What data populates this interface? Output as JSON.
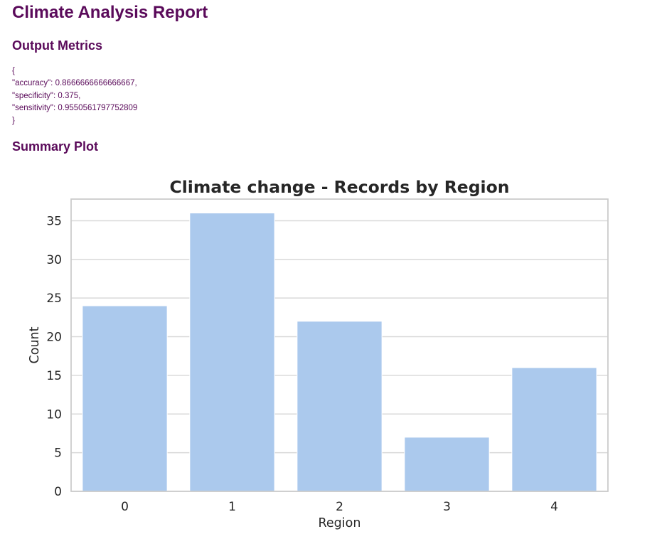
{
  "report": {
    "title": "Climate Analysis Report"
  },
  "sections": {
    "metrics_heading": "Output Metrics",
    "plot_heading": "Summary Plot"
  },
  "metrics": {
    "lines": [
      "{",
      "\"accuracy\": 0.8666666666666667,",
      "\"specificity\": 0.375,",
      "\"sensitivity\": 0.9550561797752809",
      "}"
    ]
  },
  "colors": {
    "heading": "#5a0a5a",
    "bar": "#abc9ed",
    "grid": "#d9d9d9",
    "frame": "#cccccc",
    "text": "#262626"
  },
  "chart_data": {
    "type": "bar",
    "title": "Climate change - Records by Region",
    "xlabel": "Region",
    "ylabel": "Count",
    "categories": [
      "0",
      "1",
      "2",
      "3",
      "4"
    ],
    "values": [
      24,
      36,
      22,
      7,
      16
    ],
    "ylim": [
      0,
      37.8
    ],
    "yticks": [
      0,
      5,
      10,
      15,
      20,
      25,
      30,
      35
    ],
    "grid": true,
    "legend": "none"
  }
}
